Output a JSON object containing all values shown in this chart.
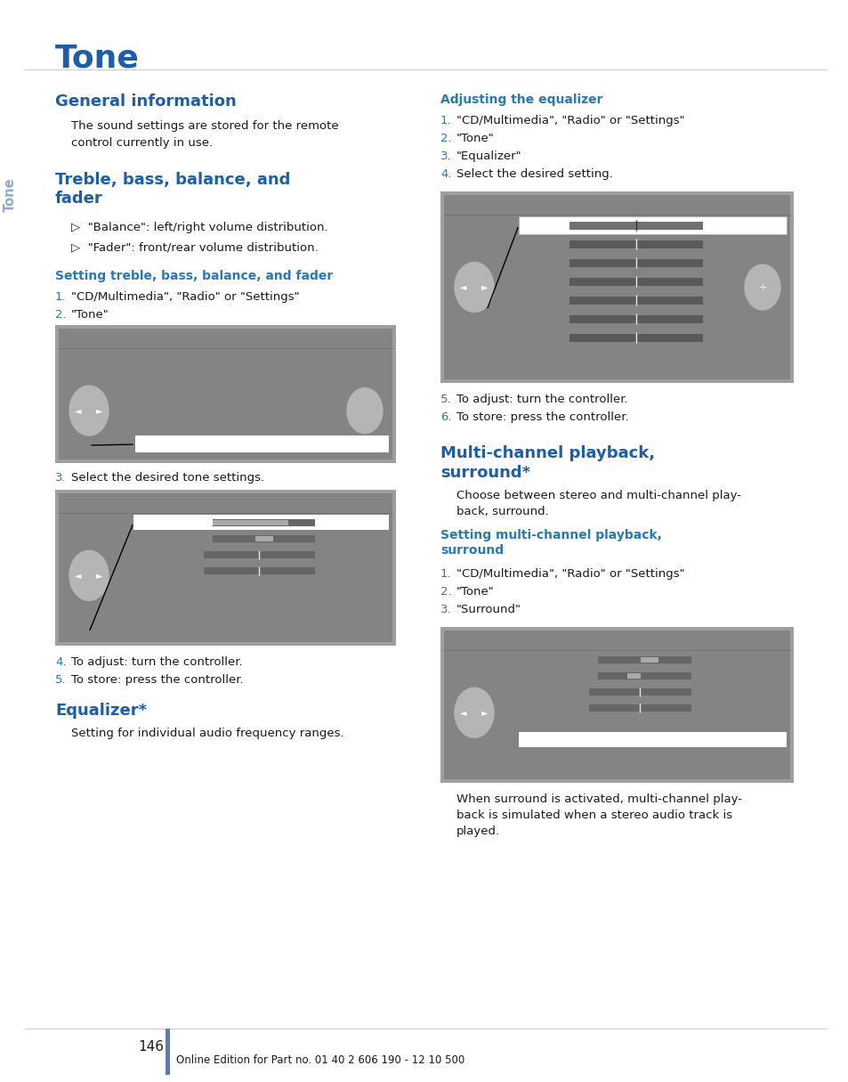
{
  "title": "Tone",
  "blue_h": "#1c5ea8",
  "blue_s": "#2878b8",
  "tc": "#1a1a1a",
  "bg": "#ffffff",
  "gray_screen": "#8a8a8a",
  "gray_outer": "#9a9a9a",
  "page_num": "146",
  "footer": "Online Edition for Part no. 01 40 2 606 190 - 12 10 500",
  "sidebar_color": "#8fa8cc"
}
